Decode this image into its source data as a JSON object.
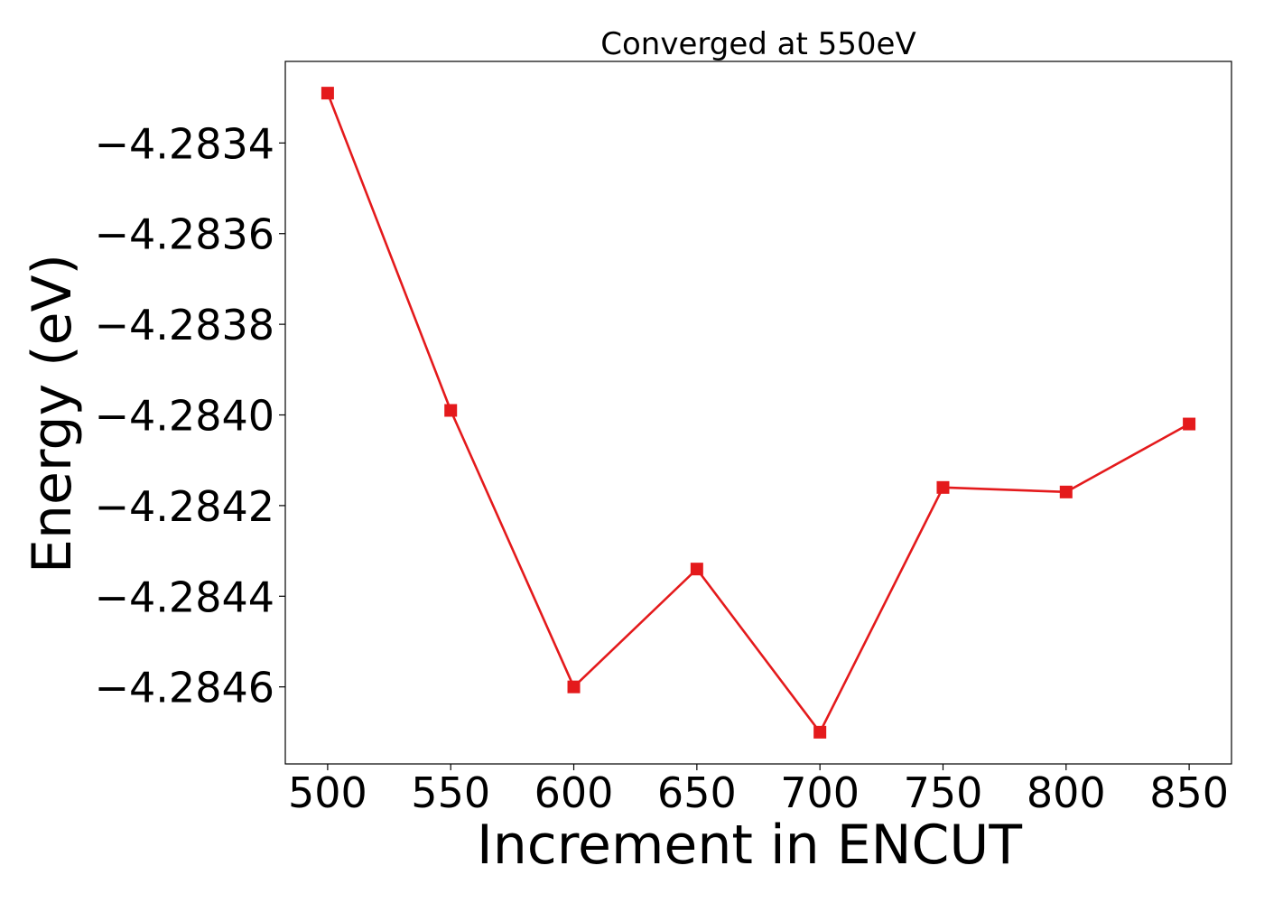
{
  "chart_data": {
    "type": "line",
    "title": "Converged at 550eV",
    "xlabel": "Increment in ENCUT",
    "ylabel": "Energy (eV)",
    "x": [
      500,
      550,
      600,
      650,
      700,
      750,
      800,
      850
    ],
    "series": [
      {
        "values": [
          -4.28329,
          -4.28399,
          -4.2846,
          -4.28434,
          -4.2847,
          -4.28416,
          -4.28417,
          -4.28402
        ],
        "color": "#e41a1c",
        "marker": "square"
      }
    ],
    "xlim": [
      482.8,
      867.2
    ],
    "ylim": [
      -4.28477,
      -4.28322
    ],
    "xticks": [
      500,
      550,
      600,
      650,
      700,
      750,
      800,
      850
    ],
    "xtick_labels": [
      "500",
      "550",
      "600",
      "650",
      "700",
      "750",
      "800",
      "850"
    ],
    "yticks": [
      -4.2846,
      -4.2844,
      -4.2842,
      -4.284,
      -4.2838,
      -4.2836,
      -4.2834
    ],
    "ytick_labels": [
      "−4.2846",
      "−4.2844",
      "−4.2842",
      "−4.2840",
      "−4.2838",
      "−4.2836",
      "−4.2834"
    ],
    "grid": false,
    "legend": "none"
  }
}
